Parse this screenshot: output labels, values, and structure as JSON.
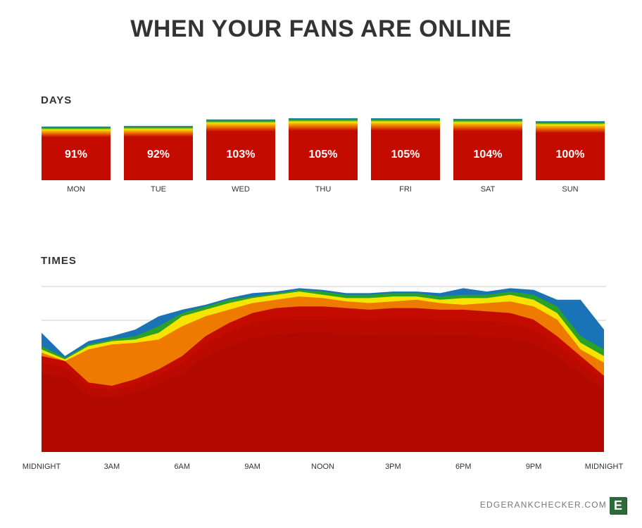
{
  "title": "WHEN YOUR FANS ARE ONLINE",
  "days_label": "DAYS",
  "times_label": "TIMES",
  "footer": {
    "site": "EDGERANKCHECKER.COM",
    "logo_letter": "E"
  },
  "watermark_text": "EdgeRankChecker.com",
  "colors": {
    "red": "#c40b00",
    "orange": "#ef7a00",
    "yellow": "#f6e400",
    "green": "#2aa226",
    "blue": "#1a73b6",
    "gridline": "#cccccc"
  },
  "chart_data": [
    {
      "type": "bar",
      "name": "days",
      "categories": [
        "MON",
        "TUE",
        "WED",
        "THU",
        "FRI",
        "SAT",
        "SUN"
      ],
      "values": [
        91,
        92,
        103,
        105,
        105,
        104,
        100
      ],
      "labels": [
        "91%",
        "92%",
        "103%",
        "105%",
        "105%",
        "104%",
        "100%"
      ],
      "ylim": [
        0,
        105
      ]
    },
    {
      "type": "area",
      "name": "times",
      "x": [
        0,
        1,
        2,
        3,
        4,
        5,
        6,
        7,
        8,
        9,
        10,
        11,
        12,
        13,
        14,
        15,
        16,
        17,
        18,
        19,
        20,
        21,
        22,
        23,
        24
      ],
      "xticks": [
        "MIDNIGHT",
        "3AM",
        "6AM",
        "9AM",
        "NOON",
        "3PM",
        "6PM",
        "9PM",
        "MIDNIGHT"
      ],
      "xtick_hours": [
        0,
        3,
        6,
        9,
        12,
        15,
        18,
        21,
        24
      ],
      "ylim": [
        0,
        100
      ],
      "series": [
        {
          "color": "red",
          "values": [
            58,
            55,
            42,
            40,
            44,
            50,
            58,
            70,
            78,
            84,
            87,
            88,
            88,
            87,
            86,
            87,
            87,
            86,
            86,
            85,
            84,
            80,
            70,
            58,
            46
          ]
        },
        {
          "color": "orange",
          "values": [
            60,
            55,
            62,
            65,
            66,
            68,
            76,
            82,
            86,
            90,
            92,
            94,
            93,
            91,
            90,
            91,
            92,
            90,
            89,
            90,
            91,
            88,
            80,
            62,
            54
          ]
        },
        {
          "color": "yellow",
          "values": [
            62,
            56,
            64,
            67,
            68,
            72,
            82,
            86,
            90,
            93,
            95,
            97,
            95,
            93,
            93,
            94,
            94,
            92,
            93,
            93,
            95,
            92,
            84,
            66,
            58
          ]
        },
        {
          "color": "green",
          "values": [
            64,
            57,
            65,
            68,
            70,
            76,
            84,
            88,
            92,
            94,
            96,
            98,
            97,
            95,
            95,
            96,
            96,
            94,
            95,
            95,
            97,
            95,
            88,
            70,
            62
          ]
        },
        {
          "color": "blue",
          "values": [
            72,
            58,
            67,
            70,
            74,
            82,
            86,
            89,
            93,
            96,
            97,
            99,
            98,
            96,
            96,
            97,
            97,
            96,
            99,
            97,
            99,
            98,
            92,
            92,
            74
          ]
        }
      ]
    }
  ]
}
